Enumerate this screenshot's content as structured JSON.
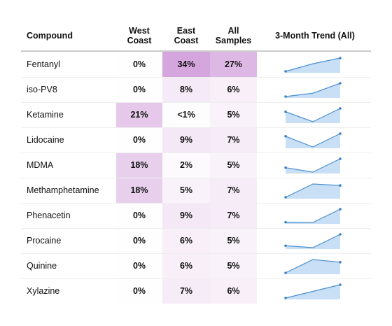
{
  "table": {
    "columns": [
      "Compound",
      "West Coast",
      "East Coast",
      "All Samples",
      "3-Month Trend (All)"
    ],
    "rows": [
      {
        "compound": "Fentanyl",
        "west": "0%",
        "east": "34%",
        "all": "27%",
        "trend": [
          20,
          24,
          27
        ]
      },
      {
        "compound": "iso-PV8",
        "west": "0%",
        "east": "8%",
        "all": "6%",
        "trend": [
          2,
          3,
          6
        ]
      },
      {
        "compound": "Ketamine",
        "west": "21%",
        "east": "<1%",
        "all": "5%",
        "trend": [
          4,
          1,
          5
        ]
      },
      {
        "compound": "Lidocaine",
        "west": "0%",
        "east": "9%",
        "all": "7%",
        "trend": [
          6,
          2,
          7
        ]
      },
      {
        "compound": "MDMA",
        "west": "18%",
        "east": "2%",
        "all": "5%",
        "trend": [
          3,
          2,
          5
        ]
      },
      {
        "compound": "Methamphetamine",
        "west": "18%",
        "east": "5%",
        "all": "7%",
        "trend": [
          3,
          7.5,
          7
        ]
      },
      {
        "compound": "Phenacetin",
        "west": "0%",
        "east": "9%",
        "all": "7%",
        "trend": [
          2,
          1.9,
          7
        ]
      },
      {
        "compound": "Procaine",
        "west": "0%",
        "east": "6%",
        "all": "5%",
        "trend": [
          2,
          1.5,
          5
        ]
      },
      {
        "compound": "Quinine",
        "west": "0%",
        "east": "6%",
        "all": "5%",
        "trend": [
          1,
          6,
          5
        ]
      },
      {
        "compound": "Xylazine",
        "west": "0%",
        "east": "7%",
        "all": "6%",
        "trend": [
          2,
          4,
          6
        ]
      }
    ]
  }
}
